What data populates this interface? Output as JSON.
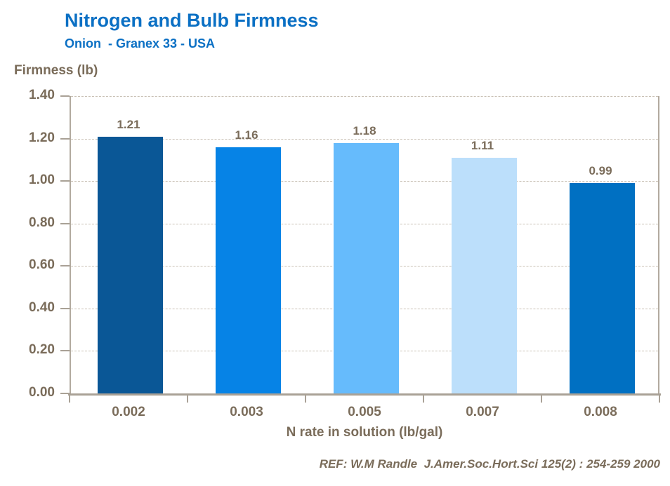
{
  "header": {
    "title": "Nitrogen and Bulb Firmness",
    "subtitle": "Onion  - Granex 33 - USA"
  },
  "chart_data": {
    "type": "bar",
    "title": "Nitrogen and Bulb Firmness",
    "subtitle": "Onion  - Granex 33 - USA",
    "categories": [
      "0.002",
      "0.003",
      "0.005",
      "0.007",
      "0.008"
    ],
    "values": [
      1.21,
      1.16,
      1.18,
      1.11,
      0.99
    ],
    "value_labels": [
      "1.21",
      "1.16",
      "1.18",
      "1.11",
      "0.99"
    ],
    "bar_colors": [
      "#0A5796",
      "#0683E6",
      "#66BBFC",
      "#BCDFFB",
      "#0070C2"
    ],
    "xlabel": "N rate in solution (lb/gal)",
    "ylabel": "Firmness (lb)",
    "ylim": [
      0,
      1.4
    ],
    "ytick_step": 0.2,
    "ytick_labels": [
      "0.00",
      "0.20",
      "0.40",
      "0.60",
      "0.80",
      "1.00",
      "1.20",
      "1.40"
    ],
    "grid": "horizontal-dashed",
    "legend": null
  },
  "footer": {
    "reference": "REF: W.M Randle  J.Amer.Soc.Hort.Sci 125(2) : 254-259 2000"
  },
  "colors": {
    "title_blue": "#0B70C4",
    "label_brown": "#7A6C5A",
    "gridline": "#C8BFB3",
    "axis": "#A9A196",
    "background": "#FFFFFF"
  }
}
